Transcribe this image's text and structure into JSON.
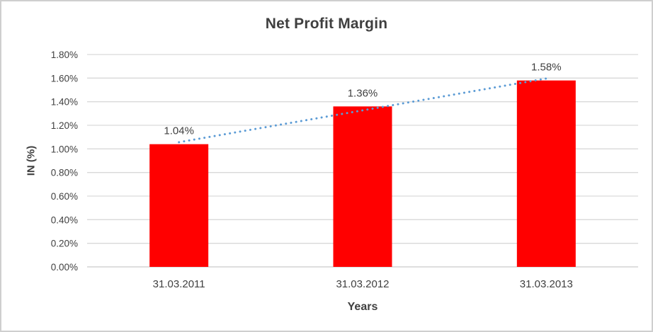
{
  "chart_data": {
    "type": "bar",
    "title": "Net Profit Margin",
    "categories": [
      "31.03.2011",
      "31.03.2012",
      "31.03.2013"
    ],
    "values": [
      1.04,
      1.36,
      1.58
    ],
    "data_labels": [
      "1.04%",
      "1.36%",
      "1.58%"
    ],
    "xlabel": "Years",
    "ylabel": "IN (%)",
    "ylim": [
      0,
      1.8
    ],
    "ytick_step": 0.2,
    "ytick_labels": [
      "0.00%",
      "0.20%",
      "0.40%",
      "0.60%",
      "0.80%",
      "1.00%",
      "1.20%",
      "1.40%",
      "1.60%",
      "1.80%"
    ],
    "grid": true,
    "legend": "none",
    "trendline": {
      "type": "linear",
      "style": "dotted"
    }
  },
  "colors": {
    "bar": "#FF0000",
    "trendline": "#5B9BD5",
    "gridline": "#D9D9D9",
    "axis_line": "#C9C9C9",
    "text": "#404040",
    "title_text": "#3F3F3F",
    "frame_border": "#CFCFCF"
  }
}
